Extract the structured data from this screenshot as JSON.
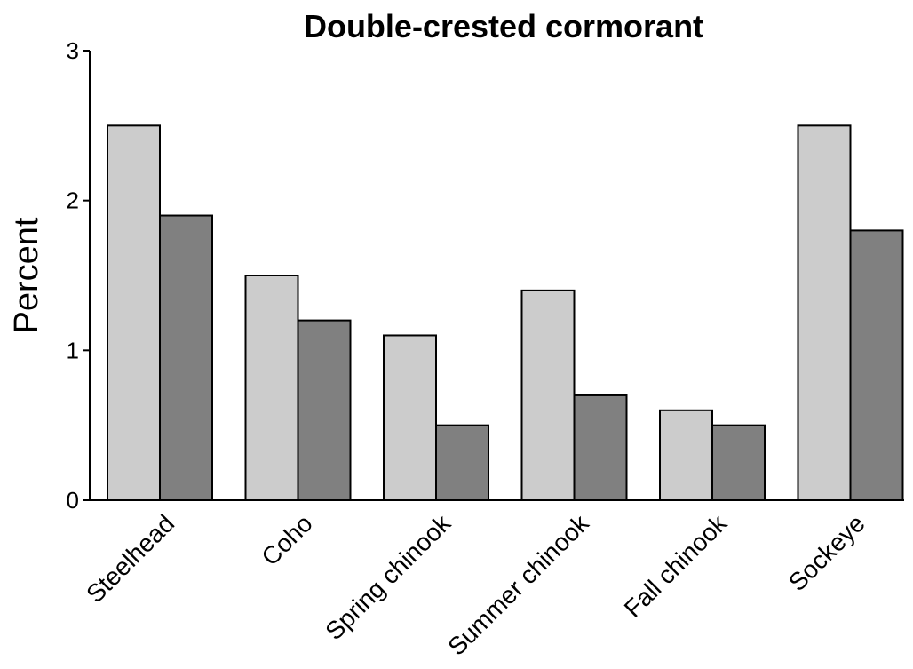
{
  "chart_data": {
    "type": "bar",
    "title": "Double-crested cormorant",
    "xlabel": "",
    "ylabel": "Percent",
    "ylim": [
      0,
      3
    ],
    "yticks": [
      0,
      1,
      2,
      3
    ],
    "ytick_labels": [
      "0",
      "1",
      "2",
      "3"
    ],
    "categories": [
      "Steelhead",
      "Coho",
      "Spring chinook",
      "Summer chinook",
      "Fall chinook",
      "Sockeye"
    ],
    "series": [
      {
        "values": [
          2.5,
          1.5,
          1.1,
          1.4,
          0.6,
          2.5
        ],
        "color": "#cccccc"
      },
      {
        "values": [
          1.9,
          1.2,
          0.5,
          0.7,
          0.5,
          1.8
        ],
        "color": "#808080"
      }
    ],
    "grid": false,
    "legend": "none"
  }
}
